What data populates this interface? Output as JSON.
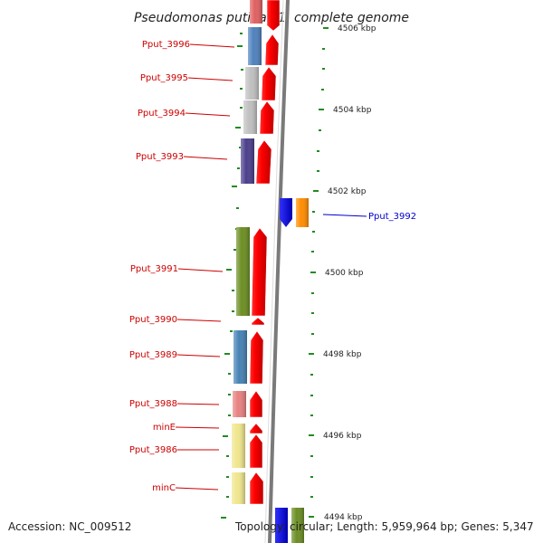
{
  "title": "Pseudomonas putida F1, complete genome",
  "footer": {
    "accession": "Accession: NC_009512",
    "topology": "Topology: circular; Length: 5,959,964 bp; Genes: 5,347"
  },
  "colors": {
    "label_red": "#cc0000",
    "label_blue": "#0000cc",
    "tick_green": "#228b22",
    "strand_line": "#888888"
  },
  "ticks": [
    {
      "label": "4506 kbp"
    },
    {
      "label": "4504 kbp"
    },
    {
      "label": "4502 kbp"
    },
    {
      "label": "4500 kbp"
    },
    {
      "label": "4498 kbp"
    },
    {
      "label": "4496 kbp"
    },
    {
      "label": "4494 kbp"
    }
  ],
  "genes_left": [
    {
      "label": "Pput_3996",
      "cog_color": "#4f81bd"
    },
    {
      "label": "Pput_3995",
      "cog_color": "#c0c0c0"
    },
    {
      "label": "Pput_3994",
      "cog_color": "#c0c0c0"
    },
    {
      "label": "Pput_3993",
      "cog_color": "#4b3f8c"
    },
    {
      "label": "Pput_3991",
      "cog_color": "#6b8e23"
    },
    {
      "label": "Pput_3990",
      "cog_color": ""
    },
    {
      "label": "Pput_3989",
      "cog_color": "#4682b4"
    },
    {
      "label": "Pput_3988",
      "cog_color": "#e88080"
    },
    {
      "label": "minE",
      "cog_color": "#f0e68c"
    },
    {
      "label": "Pput_3986",
      "cog_color": "#f0e68c"
    },
    {
      "label": "minC",
      "cog_color": "#f0e68c"
    }
  ],
  "genes_right": [
    {
      "label": "Pput_3992",
      "cog_color": "#ff8c00"
    }
  ]
}
